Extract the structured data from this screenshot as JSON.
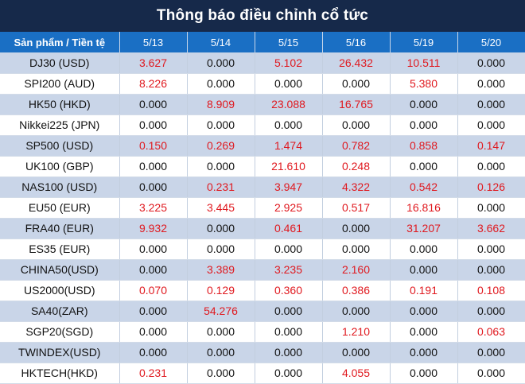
{
  "title": "Thông báo điều chỉnh cổ tức",
  "header": {
    "product_label": "Sản phẩm / Tiền tệ",
    "dates": [
      "5/13",
      "5/14",
      "5/15",
      "5/16",
      "5/19",
      "5/20"
    ]
  },
  "rows": [
    {
      "product": "DJ30 (USD)",
      "values": [
        "3.627",
        "0.000",
        "5.102",
        "26.432",
        "10.511",
        "0.000"
      ]
    },
    {
      "product": "SPI200 (AUD)",
      "values": [
        "8.226",
        "0.000",
        "0.000",
        "0.000",
        "5.380",
        "0.000"
      ]
    },
    {
      "product": "HK50 (HKD)",
      "values": [
        "0.000",
        "8.909",
        "23.088",
        "16.765",
        "0.000",
        "0.000"
      ]
    },
    {
      "product": "Nikkei225 (JPN)",
      "values": [
        "0.000",
        "0.000",
        "0.000",
        "0.000",
        "0.000",
        "0.000"
      ]
    },
    {
      "product": "SP500 (USD)",
      "values": [
        "0.150",
        "0.269",
        "1.474",
        "0.782",
        "0.858",
        "0.147"
      ]
    },
    {
      "product": "UK100 (GBP)",
      "values": [
        "0.000",
        "0.000",
        "21.610",
        "0.248",
        "0.000",
        "0.000"
      ]
    },
    {
      "product": "NAS100 (USD)",
      "values": [
        "0.000",
        "0.231",
        "3.947",
        "4.322",
        "0.542",
        "0.126"
      ]
    },
    {
      "product": "EU50 (EUR)",
      "values": [
        "3.225",
        "3.445",
        "2.925",
        "0.517",
        "16.816",
        "0.000"
      ]
    },
    {
      "product": "FRA40 (EUR)",
      "values": [
        "9.932",
        "0.000",
        "0.461",
        "0.000",
        "31.207",
        "3.662"
      ]
    },
    {
      "product": "ES35 (EUR)",
      "values": [
        "0.000",
        "0.000",
        "0.000",
        "0.000",
        "0.000",
        "0.000"
      ]
    },
    {
      "product": "CHINA50(USD)",
      "values": [
        "0.000",
        "3.389",
        "3.235",
        "2.160",
        "0.000",
        "0.000"
      ]
    },
    {
      "product": "US2000(USD)",
      "values": [
        "0.070",
        "0.129",
        "0.360",
        "0.386",
        "0.191",
        "0.108"
      ]
    },
    {
      "product": "SA40(ZAR)",
      "values": [
        "0.000",
        "54.276",
        "0.000",
        "0.000",
        "0.000",
        "0.000"
      ]
    },
    {
      "product": "SGP20(SGD)",
      "values": [
        "0.000",
        "0.000",
        "0.000",
        "1.210",
        "0.000",
        "0.063"
      ]
    },
    {
      "product": "TWINDEX(USD)",
      "values": [
        "0.000",
        "0.000",
        "0.000",
        "0.000",
        "0.000",
        "0.000"
      ]
    },
    {
      "product": "HKTECH(HKD)",
      "values": [
        "0.231",
        "0.000",
        "0.000",
        "4.055",
        "0.000",
        "0.000"
      ]
    }
  ],
  "colors": {
    "title_bg": "#16294a",
    "header_bg": "#1a6fc4",
    "stripe": "#c9d5e8",
    "positive_value": "#e0191f",
    "zero_value": "#111111"
  }
}
